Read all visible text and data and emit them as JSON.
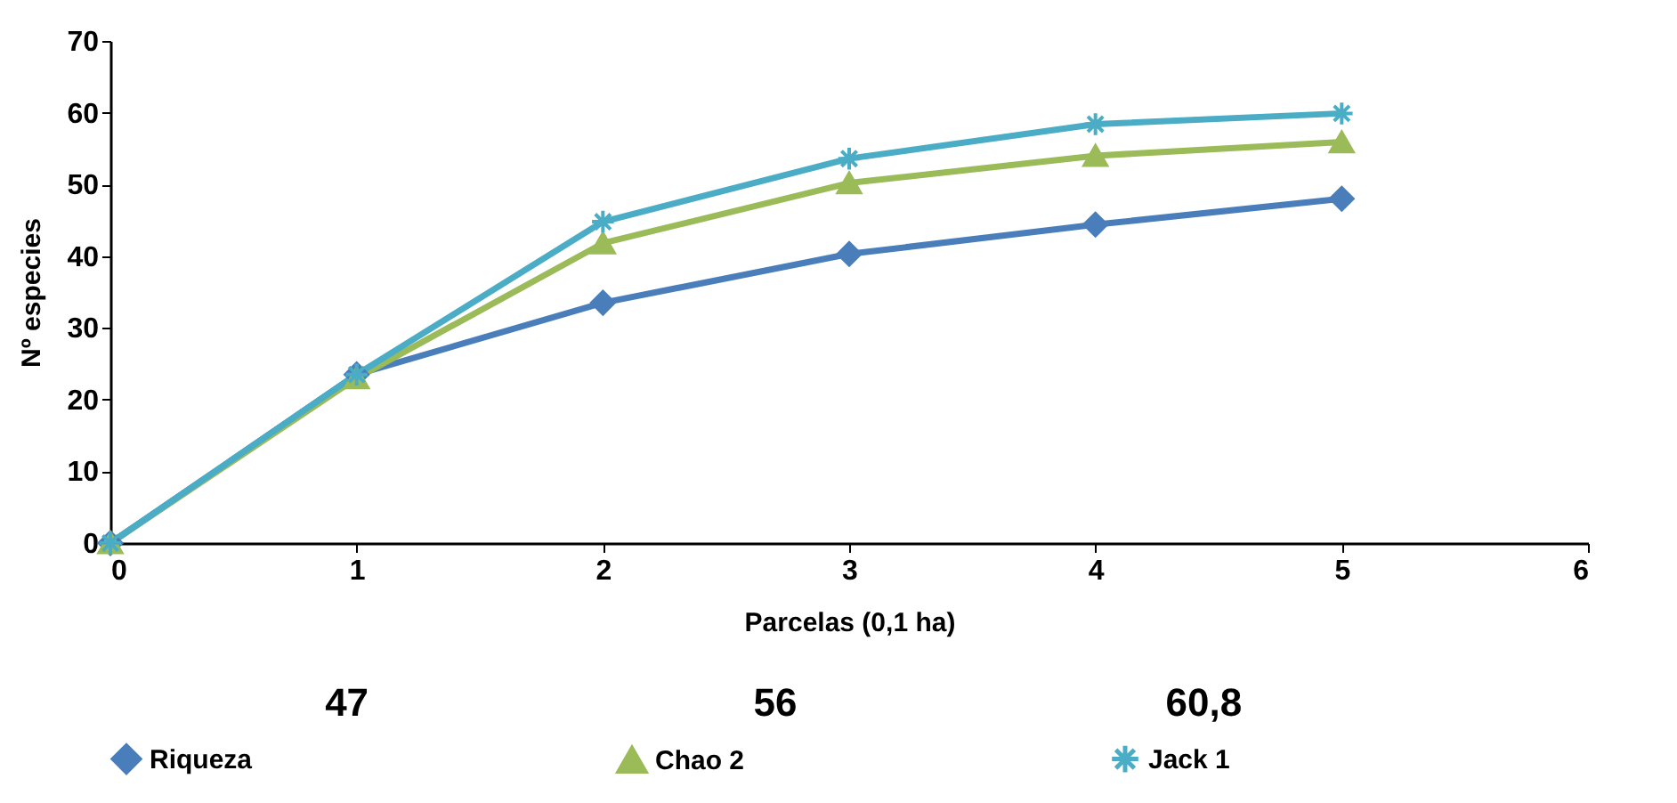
{
  "chart_data": {
    "type": "line",
    "xlabel": "Parcelas (0,1 ha)",
    "ylabel": "Nº especies",
    "x": [
      0,
      1,
      2,
      3,
      4,
      5
    ],
    "series": [
      {
        "name": "Riqueza",
        "color": "#4a7ebb",
        "marker": "diamond",
        "values": [
          0,
          23.5,
          33.5,
          40.3,
          44.4,
          48
        ]
      },
      {
        "name": "Chao 2",
        "color": "#9bbb59",
        "marker": "triangle",
        "values": [
          0,
          23,
          41.8,
          50.2,
          54,
          55.9
        ]
      },
      {
        "name": "Jack 1",
        "color": "#4bacc6",
        "marker": "cross",
        "values": [
          0,
          23.5,
          44.8,
          53.6,
          58.4,
          59.9
        ]
      }
    ],
    "xlim": [
      0,
      6
    ],
    "xticks": [
      0,
      1,
      2,
      3,
      4,
      5,
      6
    ],
    "ylim": [
      0,
      70
    ],
    "yticks": [
      0,
      10,
      20,
      30,
      40,
      50,
      60,
      70
    ],
    "annotations": [
      "47",
      "56",
      "60,8"
    ],
    "grid": false,
    "legend": "bottom",
    "line_style": "solid"
  }
}
